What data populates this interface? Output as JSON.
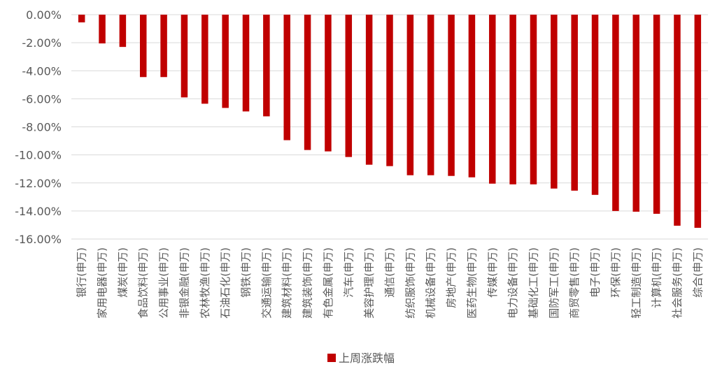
{
  "chart_data": {
    "type": "bar",
    "title": "",
    "xlabel": "",
    "ylabel": "",
    "ylim": [
      -16,
      0
    ],
    "ytick_step": 2,
    "ytick_labels": [
      "0.00%",
      "-2.00%",
      "-4.00%",
      "-6.00%",
      "-8.00%",
      "-10.00%",
      "-12.00%",
      "-14.00%",
      "-16.00%"
    ],
    "grid": true,
    "legend_position": "bottom-center",
    "bar_color": "#c00000",
    "categories": [
      "银行(申万)",
      "家用电器(申万)",
      "煤炭(申万)",
      "食品饮料(申万)",
      "公用事业(申万)",
      "非银金融(申万)",
      "农林牧渔(申万)",
      "石油石化(申万)",
      "钢铁(申万)",
      "交通运输(申万)",
      "建筑材料(申万)",
      "建筑装饰(申万)",
      "有色金属(申万)",
      "汽车(申万)",
      "美容护理(申万)",
      "通信(申万)",
      "纺织服饰(申万)",
      "机械设备(申万)",
      "房地产(申万)",
      "医药生物(申万)",
      "传媒(申万)",
      "电力设备(申万)",
      "基础化工(申万)",
      "国防军工(申万)",
      "商贸零售(申万)",
      "电子(申万)",
      "环保(申万)",
      "轻工制造(申万)",
      "计算机(申万)",
      "社会服务(申万)",
      "综合(申万)"
    ],
    "series": [
      {
        "name": "上周涨跌幅",
        "values": [
          -0.55,
          -2.05,
          -2.3,
          -4.45,
          -4.45,
          -5.9,
          -6.35,
          -6.65,
          -6.9,
          -7.25,
          -8.95,
          -9.65,
          -9.75,
          -10.15,
          -10.7,
          -10.8,
          -11.45,
          -11.45,
          -11.5,
          -11.6,
          -12.05,
          -12.1,
          -12.1,
          -12.4,
          -12.55,
          -12.85,
          -14.0,
          -14.05,
          -14.2,
          -15.05,
          -15.2
        ]
      }
    ]
  }
}
